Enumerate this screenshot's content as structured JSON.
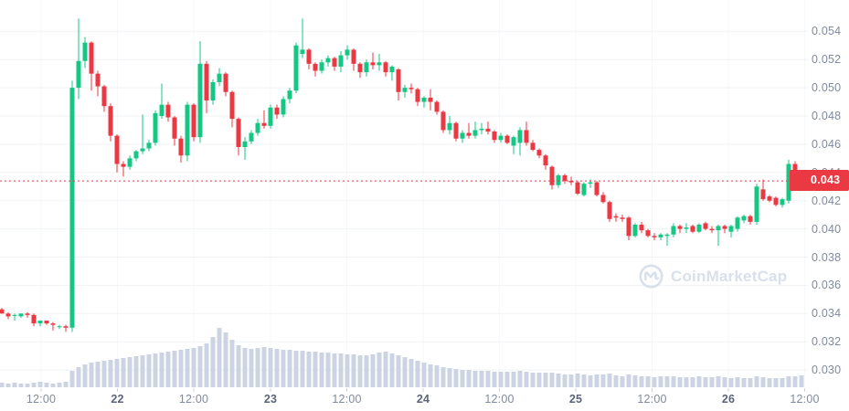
{
  "chart": {
    "current_price": {
      "label": "0.043"
    },
    "colors": {
      "up": "#16c784",
      "down": "#ea3943",
      "volume": "#ccd4e3",
      "grid_horizontal": "#eff2f5",
      "grid_vertical": "#f6f8fa",
      "axis_text": "#808a9d",
      "day_text": "#5a6579",
      "badge_bg": "#ea3943",
      "watermark": "#d9dfeb",
      "background": "#ffffff"
    },
    "y_axis": {
      "labels": [
        "0.054",
        "0.052",
        "0.050",
        "0.048",
        "0.046",
        "0.044",
        "0.042",
        "0.040",
        "0.038",
        "0.036",
        "0.034",
        "0.032",
        "0.030"
      ]
    },
    "x_axis": {
      "ticks": [
        {
          "label": "12:00",
          "x": 45,
          "bold": false
        },
        {
          "label": "22",
          "x": 128.5,
          "bold": true
        },
        {
          "label": "12:00",
          "x": 212,
          "bold": false
        },
        {
          "label": "23",
          "x": 296,
          "bold": true
        },
        {
          "label": "12:00",
          "x": 379.5,
          "bold": false
        },
        {
          "label": "24",
          "x": 463,
          "bold": true
        },
        {
          "label": "12:00",
          "x": 546.5,
          "bold": false
        },
        {
          "label": "25",
          "x": 630,
          "bold": true
        },
        {
          "label": "12:00",
          "x": 713.5,
          "bold": false
        },
        {
          "label": "26",
          "x": 797,
          "bold": true
        },
        {
          "label": "12:00",
          "x": 880.5,
          "bold": false
        }
      ]
    }
  },
  "watermark": {
    "text": "CoinMarketCap"
  },
  "chart_data": {
    "type": "candlestick",
    "title": "",
    "x_tick_labels": [
      "12:00",
      "22",
      "12:00",
      "23",
      "12:00",
      "24",
      "12:00",
      "25",
      "12:00",
      "26",
      "12:00"
    ],
    "y_tick_values": [
      0.054,
      0.052,
      0.05,
      0.048,
      0.046,
      0.044,
      0.042,
      0.04,
      0.038,
      0.036,
      0.034,
      0.032,
      0.03
    ],
    "ylim": [
      0.0295,
      0.0562
    ],
    "current_price_label": "0.043",
    "candle_format": [
      "open",
      "high",
      "low",
      "close"
    ],
    "candles": [
      [
        0.0343,
        0.0344,
        0.034,
        0.034
      ],
      [
        0.034,
        0.0341,
        0.0336,
        0.0338
      ],
      [
        0.0339,
        0.034,
        0.0335,
        0.0339
      ],
      [
        0.0338,
        0.034,
        0.0337,
        0.034
      ],
      [
        0.034,
        0.0341,
        0.0337,
        0.0339
      ],
      [
        0.0339,
        0.034,
        0.0331,
        0.0333
      ],
      [
        0.0333,
        0.0335,
        0.0331,
        0.0335
      ],
      [
        0.0335,
        0.0335,
        0.0332,
        0.0333
      ],
      [
        0.0333,
        0.0334,
        0.0328,
        0.0332
      ],
      [
        0.0331,
        0.0332,
        0.0329,
        0.0331
      ],
      [
        0.0331,
        0.0332,
        0.0327,
        0.033
      ],
      [
        0.033,
        0.0505,
        0.0327,
        0.05
      ],
      [
        0.05,
        0.0549,
        0.0492,
        0.0519
      ],
      [
        0.0519,
        0.0536,
        0.0514,
        0.0532
      ],
      [
        0.0532,
        0.0533,
        0.0498,
        0.051
      ],
      [
        0.051,
        0.0512,
        0.0494,
        0.0501
      ],
      [
        0.0501,
        0.0502,
        0.0483,
        0.0487
      ],
      [
        0.0487,
        0.0489,
        0.0462,
        0.0466
      ],
      [
        0.0466,
        0.0467,
        0.044,
        0.0446
      ],
      [
        0.0446,
        0.0448,
        0.0437,
        0.0444
      ],
      [
        0.0444,
        0.0452,
        0.0442,
        0.045
      ],
      [
        0.045,
        0.0456,
        0.0448,
        0.0455
      ],
      [
        0.0455,
        0.0481,
        0.0453,
        0.0457
      ],
      [
        0.0457,
        0.0463,
        0.0455,
        0.0461
      ],
      [
        0.0461,
        0.0484,
        0.0459,
        0.0482
      ],
      [
        0.048,
        0.0503,
        0.0478,
        0.0488
      ],
      [
        0.0488,
        0.049,
        0.0476,
        0.0479
      ],
      [
        0.0479,
        0.048,
        0.0459,
        0.0464
      ],
      [
        0.0464,
        0.0466,
        0.0447,
        0.0452
      ],
      [
        0.0452,
        0.049,
        0.0448,
        0.0488
      ],
      [
        0.0488,
        0.0489,
        0.0462,
        0.0465
      ],
      [
        0.0465,
        0.0533,
        0.0461,
        0.0517
      ],
      [
        0.0517,
        0.0519,
        0.0482,
        0.0491
      ],
      [
        0.0491,
        0.0506,
        0.0488,
        0.0504
      ],
      [
        0.0504,
        0.0514,
        0.0501,
        0.051
      ],
      [
        0.051,
        0.0511,
        0.0494,
        0.0497
      ],
      [
        0.0497,
        0.0498,
        0.0472,
        0.0478
      ],
      [
        0.0478,
        0.0479,
        0.0452,
        0.0458
      ],
      [
        0.0458,
        0.0465,
        0.0449,
        0.0462
      ],
      [
        0.0462,
        0.047,
        0.046,
        0.0468
      ],
      [
        0.0468,
        0.0478,
        0.0466,
        0.0475
      ],
      [
        0.0475,
        0.0484,
        0.0471,
        0.0473
      ],
      [
        0.0473,
        0.0488,
        0.0471,
        0.0486
      ],
      [
        0.0486,
        0.0488,
        0.0478,
        0.0481
      ],
      [
        0.0481,
        0.0494,
        0.0479,
        0.0492
      ],
      [
        0.0492,
        0.05,
        0.0489,
        0.0498
      ],
      [
        0.0498,
        0.0532,
        0.0496,
        0.053
      ],
      [
        0.0524,
        0.0549,
        0.0521,
        0.0527
      ],
      [
        0.0527,
        0.0528,
        0.0513,
        0.0517
      ],
      [
        0.0517,
        0.0518,
        0.0508,
        0.0512
      ],
      [
        0.0512,
        0.052,
        0.051,
        0.0518
      ],
      [
        0.0518,
        0.0523,
        0.0515,
        0.0521
      ],
      [
        0.0521,
        0.0522,
        0.0512,
        0.0515
      ],
      [
        0.0515,
        0.0526,
        0.0511,
        0.0523
      ],
      [
        0.0523,
        0.053,
        0.052,
        0.0527
      ],
      [
        0.0527,
        0.0528,
        0.0512,
        0.0517
      ],
      [
        0.0517,
        0.0518,
        0.0507,
        0.0511
      ],
      [
        0.0511,
        0.052,
        0.0508,
        0.0518
      ],
      [
        0.0518,
        0.0525,
        0.0513,
        0.0516
      ],
      [
        0.0516,
        0.0524,
        0.0512,
        0.0518
      ],
      [
        0.0518,
        0.0519,
        0.0508,
        0.0511
      ],
      [
        0.0511,
        0.0516,
        0.0505,
        0.0515
      ],
      [
        0.0513,
        0.0514,
        0.0491,
        0.0497
      ],
      [
        0.0497,
        0.0502,
        0.0493,
        0.05
      ],
      [
        0.05,
        0.0503,
        0.0496,
        0.0499
      ],
      [
        0.0499,
        0.05,
        0.0487,
        0.049
      ],
      [
        0.049,
        0.0494,
        0.0486,
        0.0493
      ],
      [
        0.0493,
        0.0499,
        0.0484,
        0.049
      ],
      [
        0.049,
        0.0491,
        0.0481,
        0.0483
      ],
      [
        0.0483,
        0.0484,
        0.0468,
        0.047
      ],
      [
        0.047,
        0.048,
        0.0467,
        0.0475
      ],
      [
        0.0475,
        0.0476,
        0.0462,
        0.0464
      ],
      [
        0.0464,
        0.047,
        0.0461,
        0.0468
      ],
      [
        0.0468,
        0.0475,
        0.0464,
        0.0466
      ],
      [
        0.0466,
        0.0476,
        0.0464,
        0.047
      ],
      [
        0.047,
        0.0475,
        0.0467,
        0.0471
      ],
      [
        0.0471,
        0.0476,
        0.0467,
        0.0469
      ],
      [
        0.0469,
        0.047,
        0.0461,
        0.0463
      ],
      [
        0.0463,
        0.0468,
        0.0461,
        0.0466
      ],
      [
        0.0466,
        0.0467,
        0.046,
        0.0461
      ],
      [
        0.0459,
        0.0466,
        0.0453,
        0.0465
      ],
      [
        0.0461,
        0.0472,
        0.0452,
        0.047
      ],
      [
        0.047,
        0.0476,
        0.0459,
        0.0461
      ],
      [
        0.0461,
        0.0463,
        0.0455,
        0.0456
      ],
      [
        0.0456,
        0.0457,
        0.045,
        0.0452
      ],
      [
        0.0452,
        0.0453,
        0.0442,
        0.0445
      ],
      [
        0.0444,
        0.0445,
        0.0428,
        0.0431
      ],
      [
        0.0431,
        0.0439,
        0.0429,
        0.0438
      ],
      [
        0.0438,
        0.0439,
        0.0432,
        0.0434
      ],
      [
        0.0434,
        0.0437,
        0.0431,
        0.0433
      ],
      [
        0.0433,
        0.0434,
        0.0424,
        0.0425
      ],
      [
        0.0424,
        0.0433,
        0.0423,
        0.0432
      ],
      [
        0.0432,
        0.0435,
        0.0429,
        0.0433
      ],
      [
        0.0433,
        0.0434,
        0.0423,
        0.0424
      ],
      [
        0.0424,
        0.0426,
        0.0418,
        0.0419
      ],
      [
        0.0419,
        0.042,
        0.0405,
        0.0407
      ],
      [
        0.0409,
        0.0411,
        0.0405,
        0.0408
      ],
      [
        0.0408,
        0.041,
        0.0405,
        0.0407
      ],
      [
        0.0408,
        0.0409,
        0.0392,
        0.0395
      ],
      [
        0.0395,
        0.0404,
        0.0394,
        0.0403
      ],
      [
        0.0403,
        0.0405,
        0.0397,
        0.0399
      ],
      [
        0.0399,
        0.04,
        0.0394,
        0.0395
      ],
      [
        0.0395,
        0.0397,
        0.0392,
        0.0394
      ],
      [
        0.0394,
        0.0397,
        0.0392,
        0.0396
      ],
      [
        0.0395,
        0.0397,
        0.0388,
        0.0396
      ],
      [
        0.0396,
        0.0404,
        0.0394,
        0.0402
      ],
      [
        0.0402,
        0.0403,
        0.0397,
        0.04
      ],
      [
        0.04,
        0.0404,
        0.0397,
        0.0401
      ],
      [
        0.0402,
        0.0403,
        0.0397,
        0.0398
      ],
      [
        0.0398,
        0.0404,
        0.0397,
        0.0403
      ],
      [
        0.0404,
        0.0405,
        0.0399,
        0.04
      ],
      [
        0.04,
        0.0402,
        0.0397,
        0.0399
      ],
      [
        0.0399,
        0.0403,
        0.0388,
        0.0402
      ],
      [
        0.0402,
        0.0403,
        0.0397,
        0.04
      ],
      [
        0.0398,
        0.0403,
        0.0394,
        0.0402
      ],
      [
        0.04,
        0.0409,
        0.0398,
        0.0408
      ],
      [
        0.0406,
        0.041,
        0.0404,
        0.0409
      ],
      [
        0.0409,
        0.041,
        0.0403,
        0.0405
      ],
      [
        0.0405,
        0.0432,
        0.0403,
        0.043
      ],
      [
        0.0428,
        0.0435,
        0.042,
        0.0421
      ],
      [
        0.0423,
        0.0424,
        0.0419,
        0.042
      ],
      [
        0.0422,
        0.0423,
        0.0416,
        0.0417
      ],
      [
        0.0417,
        0.0422,
        0.0415,
        0.0421
      ],
      [
        0.042,
        0.0449,
        0.0418,
        0.0446
      ],
      [
        0.0446,
        0.0448,
        0.0437,
        0.0438
      ],
      [
        0.0438,
        0.044,
        0.0432,
        0.0434
      ]
    ],
    "volume_rel": [
      5,
      4,
      5,
      4,
      4,
      5,
      6,
      5,
      4,
      5,
      6,
      18,
      22,
      25,
      27,
      28,
      29,
      30,
      31,
      32,
      33,
      34,
      35,
      36,
      37,
      38,
      39,
      40,
      41,
      42,
      43,
      45,
      48,
      55,
      65,
      60,
      52,
      46,
      43,
      42,
      43,
      44,
      43,
      42,
      41,
      41,
      40,
      40,
      39,
      39,
      38,
      38,
      37,
      37,
      36,
      36,
      35,
      35,
      36,
      38,
      39,
      37,
      35,
      33,
      31,
      29,
      27,
      25,
      24,
      22,
      21,
      20,
      19,
      19,
      18,
      18,
      18,
      17,
      17,
      17,
      17,
      18,
      17,
      16,
      16,
      16,
      16,
      15,
      14,
      14,
      15,
      14,
      13,
      14,
      14,
      15,
      13,
      12,
      14,
      13,
      12,
      12,
      11,
      12,
      12,
      12,
      11,
      11,
      11,
      12,
      11,
      11,
      12,
      11,
      10,
      11,
      10,
      10,
      12,
      11,
      10,
      10,
      10,
      12,
      12,
      13
    ]
  }
}
